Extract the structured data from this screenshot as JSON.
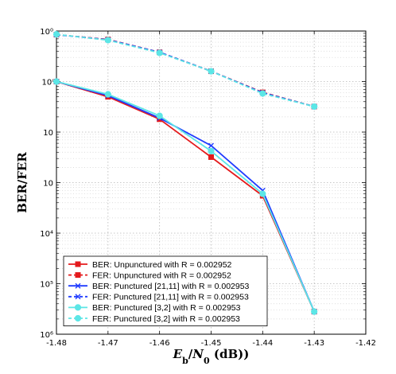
{
  "chart_data": {
    "type": "line",
    "title": "",
    "xlabel": "E_b/N_0 (dB))",
    "ylabel": "BER/FER",
    "xlim": [
      -1.48,
      -1.42
    ],
    "ylim": [
      1e-06,
      1
    ],
    "yscale": "log",
    "grid": true,
    "legend_position": "bottom-left",
    "x_ticks": [
      "-1.48",
      "-1.47",
      "-1.46",
      "-1.45",
      "-1.44",
      "-1.43",
      "-1.42"
    ],
    "x_tick_values": [
      -1.48,
      -1.47,
      -1.46,
      -1.45,
      -1.44,
      -1.43,
      -1.42
    ],
    "y_ticks": [
      "10⁶",
      "10⁵",
      "10⁴",
      "10⁳",
      "10⁲",
      "10ⁱ",
      "10⁰"
    ],
    "y_tick_exponents": [
      -6,
      -5,
      -4,
      -3,
      -2,
      -1,
      0
    ],
    "series": [
      {
        "name": "BER: Unpunctured with R = 0.002952",
        "color": "#e41a1c",
        "dash": "solid",
        "marker": "square",
        "x": [
          -1.48,
          -1.47,
          -1.46,
          -1.45,
          -1.44,
          -1.43
        ],
        "y": [
          0.1,
          0.05,
          0.018,
          0.0032,
          0.00055,
          2.8e-06
        ]
      },
      {
        "name": "FER: Unpunctured with R = 0.002952",
        "color": "#e41a1c",
        "dash": "dashed",
        "marker": "square",
        "x": [
          -1.48,
          -1.47,
          -1.46,
          -1.45,
          -1.44,
          -1.43
        ],
        "y": [
          0.85,
          0.68,
          0.38,
          0.16,
          0.061,
          0.032
        ]
      },
      {
        "name": "BER: Punctured [21,11] with R = 0.002953",
        "color": "#1f3bff",
        "dash": "solid",
        "marker": "x",
        "x": [
          -1.48,
          -1.47,
          -1.46,
          -1.45,
          -1.44,
          -1.43
        ],
        "y": [
          0.1,
          0.053,
          0.019,
          0.0054,
          0.0007,
          2.8e-06
        ]
      },
      {
        "name": "FER: Punctured [21,11] with R = 0.002953",
        "color": "#1f3bff",
        "dash": "dashed",
        "marker": "x",
        "x": [
          -1.48,
          -1.47,
          -1.46,
          -1.45,
          -1.44,
          -1.43
        ],
        "y": [
          0.85,
          0.67,
          0.38,
          0.16,
          0.06,
          0.032
        ]
      },
      {
        "name": "BER: Punctured [3,2] with R = 0.002953",
        "color": "#5ce6e6",
        "dash": "solid",
        "marker": "circle",
        "x": [
          -1.48,
          -1.47,
          -1.46,
          -1.45,
          -1.44,
          -1.43
        ],
        "y": [
          0.1,
          0.056,
          0.021,
          0.0042,
          0.0006,
          2.8e-06
        ]
      },
      {
        "name": "FER: Punctured [3,2] with R = 0.002953",
        "color": "#5ce6e6",
        "dash": "dashed",
        "marker": "circle",
        "x": [
          -1.48,
          -1.47,
          -1.46,
          -1.45,
          -1.44,
          -1.43
        ],
        "y": [
          0.86,
          0.66,
          0.37,
          0.16,
          0.058,
          0.032
        ]
      }
    ]
  }
}
